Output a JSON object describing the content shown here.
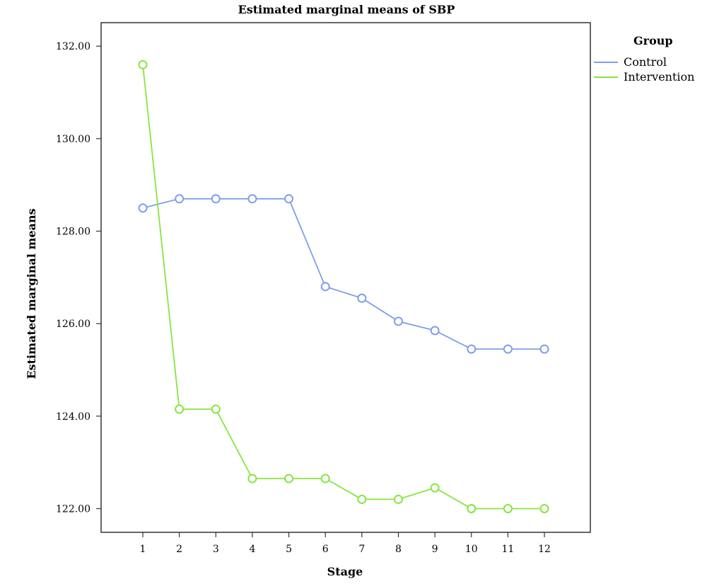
{
  "chart_data": {
    "type": "line",
    "title": "Estimated marginal means of SBP",
    "xlabel": "Stage",
    "ylabel": "Estimated marginal means",
    "x": [
      1,
      2,
      3,
      4,
      5,
      6,
      7,
      8,
      9,
      10,
      11,
      12
    ],
    "x_tick_labels": [
      "1",
      "2",
      "3",
      "4",
      "5",
      "6",
      "7",
      "8",
      "9",
      "10",
      "11",
      "12"
    ],
    "y_ticks": [
      "122.00",
      "124.00",
      "126.00",
      "128.00",
      "130.00",
      "132.00"
    ],
    "ylim": [
      121.5,
      132.9
    ],
    "grid": false,
    "legend": {
      "title": "Group",
      "placement": "top-right"
    },
    "series": [
      {
        "name": "Control",
        "color": "#7f9fea",
        "values": [
          128.5,
          128.7,
          128.7,
          128.7,
          128.7,
          126.8,
          126.55,
          126.05,
          125.85,
          125.45,
          125.45,
          125.45
        ]
      },
      {
        "name": "Intervention",
        "color": "#86e63f",
        "values": [
          131.6,
          124.15,
          124.15,
          122.65,
          122.65,
          122.65,
          122.2,
          122.2,
          122.45,
          122.0,
          122.0,
          122.0
        ]
      }
    ]
  }
}
